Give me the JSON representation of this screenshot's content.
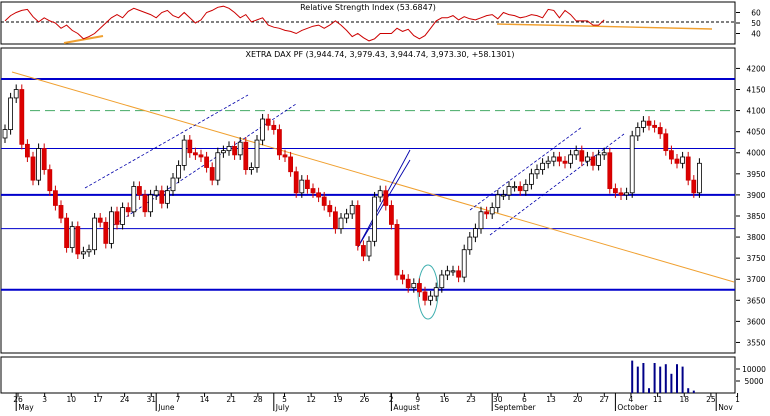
{
  "chart_data": {
    "type": "candlestick",
    "rsi_panel": {
      "title": "Relative Strength Index (53.6847)",
      "y_ticks": [
        40,
        50,
        60
      ],
      "ylim": [
        30,
        70
      ],
      "reference_lines": [
        50
      ],
      "values": [
        52,
        57,
        60,
        62,
        63,
        56,
        51,
        55,
        52,
        50,
        45,
        48,
        43,
        40,
        35,
        37,
        40,
        45,
        50,
        55,
        58,
        55,
        61,
        64,
        62,
        60,
        58,
        55,
        60,
        62,
        57,
        55,
        60,
        55,
        50,
        53,
        60,
        62,
        65,
        66,
        64,
        60,
        55,
        58,
        51,
        53,
        55,
        48,
        46,
        45,
        43,
        42,
        40,
        43,
        45,
        47,
        48,
        45,
        48,
        52,
        48,
        43,
        37,
        40,
        36,
        33,
        35,
        40,
        40,
        40,
        45,
        42,
        44,
        38,
        35,
        38,
        45,
        52,
        55,
        55,
        57,
        53,
        56,
        54,
        53,
        55,
        57,
        58,
        54,
        60,
        58,
        57,
        55,
        56,
        58,
        57,
        55,
        63,
        62,
        55,
        62,
        58,
        52,
        52,
        52,
        48,
        48,
        53
      ]
    },
    "price_panel": {
      "title": "XETRA DAX PF (3,944.74, 3,979.43, 3,944.74, 3,973.30, +58.1301)",
      "y_ticks": [
        3550,
        3600,
        3650,
        3700,
        3750,
        3800,
        3850,
        3900,
        3950,
        4000,
        4050,
        4100,
        4150,
        4200
      ],
      "ylim": [
        3525,
        4220
      ],
      "horizontal_levels": [
        4175,
        4010,
        3900,
        3820,
        3675
      ],
      "dashed_levels": [
        4100
      ],
      "close": [
        4055,
        4130,
        4150,
        4020,
        3990,
        3935,
        4010,
        3960,
        3910,
        3875,
        3845,
        3775,
        3825,
        3760,
        3765,
        3770,
        3845,
        3835,
        3785,
        3860,
        3830,
        3870,
        3860,
        3920,
        3900,
        3860,
        3900,
        3910,
        3880,
        3910,
        3940,
        3970,
        4030,
        4000,
        3995,
        3990,
        3965,
        3935,
        4000,
        4005,
        4015,
        3995,
        4025,
        3960,
        3965,
        4030,
        4080,
        4065,
        4055,
        3995,
        3990,
        3955,
        3905,
        3935,
        3915,
        3905,
        3895,
        3875,
        3860,
        3820,
        3845,
        3855,
        3875,
        3780,
        3755,
        3790,
        3895,
        3910,
        3875,
        3830,
        3710,
        3700,
        3680,
        3690,
        3670,
        3650,
        3660,
        3680,
        3710,
        3720,
        3720,
        3705,
        3770,
        3800,
        3820,
        3860,
        3855,
        3870,
        3900,
        3900,
        3920,
        3920,
        3910,
        3925,
        3950,
        3960,
        3975,
        3980,
        3990,
        3980,
        3975,
        3995,
        4005,
        3980,
        3990,
        3970,
        3995,
        4000,
        3915,
        3905,
        3900,
        3905,
        4040,
        4060,
        4075,
        4065,
        4060,
        4045,
        4005,
        3985,
        3975,
        3990,
        3935,
        3905,
        3975
      ]
    },
    "volume_panel": {
      "y_ticks": [
        5000,
        10000
      ],
      "ylim": [
        0,
        15000
      ],
      "values": [
        0,
        0,
        0,
        0,
        0,
        0,
        0,
        0,
        0,
        0,
        0,
        0,
        0,
        0,
        0,
        0,
        0,
        0,
        0,
        0,
        0,
        0,
        0,
        0,
        0,
        0,
        0,
        0,
        0,
        0,
        0,
        0,
        0,
        0,
        0,
        0,
        0,
        0,
        0,
        0,
        0,
        0,
        0,
        0,
        0,
        0,
        0,
        0,
        0,
        0,
        0,
        0,
        0,
        0,
        0,
        0,
        0,
        0,
        0,
        0,
        0,
        0,
        0,
        0,
        0,
        0,
        0,
        0,
        0,
        0,
        0,
        0,
        0,
        0,
        0,
        0,
        0,
        0,
        0,
        0,
        0,
        0,
        0,
        0,
        0,
        0,
        0,
        0,
        0,
        0,
        0,
        0,
        0,
        0,
        0,
        0,
        0,
        0,
        0,
        0,
        0,
        0,
        0,
        0,
        0,
        0,
        0,
        0,
        0,
        0,
        0,
        0,
        13500,
        11000,
        12500,
        2000,
        12500,
        11000,
        12000,
        8000,
        12000,
        11000,
        2000,
        1000,
        0
      ]
    },
    "x_axis": {
      "day_ticks": [
        "26",
        "3",
        "10",
        "17",
        "24",
        "31",
        "7",
        "14",
        "21",
        "28",
        "5",
        "12",
        "19",
        "26",
        "2",
        "9",
        "16",
        "23",
        "30",
        "6",
        "13",
        "20",
        "27",
        "4",
        "11",
        "18",
        "25",
        "1"
      ],
      "month_labels": [
        "May",
        "June",
        "July",
        "August",
        "September",
        "October",
        "Nov"
      ]
    }
  }
}
